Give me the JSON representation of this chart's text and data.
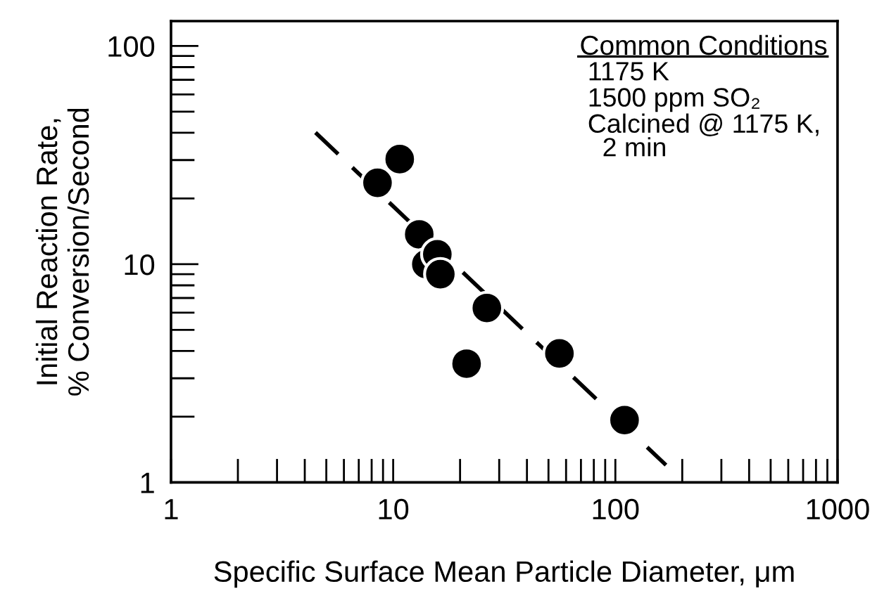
{
  "chart_data": {
    "type": "scatter",
    "xlabel": "Specific Surface Mean Particle Diameter, μm",
    "ylabel": "Initial Reaction Rate,\n% Conversion/Second",
    "log": "xy",
    "xlim": [
      1,
      1000
    ],
    "ylim": [
      1,
      130
    ],
    "xticks": [
      1,
      10,
      100,
      1000
    ],
    "yticks": [
      1,
      10,
      100
    ],
    "grid": false,
    "legend": false,
    "series": [
      {
        "color": "#000000",
        "marker": "circle",
        "x": [
          8.5,
          10.7,
          13.1,
          14.1,
          15.8,
          16.3,
          26.4,
          21.4,
          56,
          110
        ],
        "values": [
          23.6,
          30.3,
          13.7,
          10.0,
          11.1,
          9.0,
          6.3,
          3.5,
          3.9,
          1.93
        ]
      },
      {
        "type": "line",
        "color": "#000000",
        "line_style": "dashed",
        "marker": "none",
        "x": [
          4.47,
          169
        ],
        "values": [
          40.1,
          1.2
        ]
      }
    ],
    "annotations": [
      "Common Conditions",
      "1175 K",
      "1500 ppm SO₂",
      "Calcined @ 1175 K,\n  2 min"
    ]
  }
}
